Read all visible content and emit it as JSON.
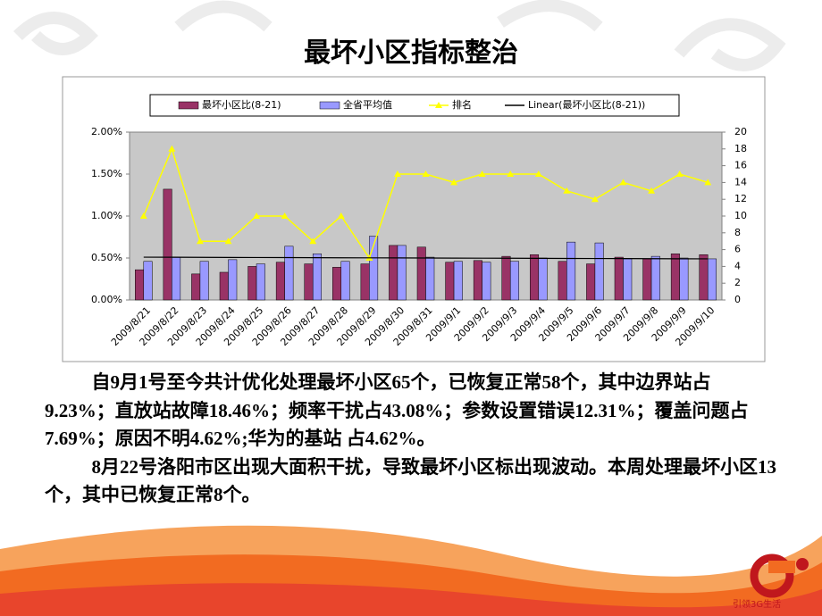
{
  "slide": {
    "title": "最坏小区指标整治",
    "paragraphs": [
      "自9月1号至今共计优化处理最坏小区65个，已恢复正常58个，其中边界站占9.23%；直放站故障18.46%；频率干扰占43.08%；参数设置错误12.31%；覆盖问题占7.69%；原因不明4.62%;华为的基站 占4.62%。",
      "8月22号洛阳市区出现大面积干扰，导致最坏小区标出现波动。本周处理最坏小区13个，其中已恢复正常8个。"
    ],
    "brand": "引领3G生活"
  },
  "chart_data": {
    "type": "bar",
    "categories": [
      "2009/8/21",
      "2009/8/22",
      "2009/8/23",
      "2009/8/24",
      "2009/8/25",
      "2009/8/26",
      "2009/8/27",
      "2009/8/28",
      "2009/8/29",
      "2009/8/30",
      "2009/8/31",
      "2009/9/1",
      "2009/9/2",
      "2009/9/3",
      "2009/9/4",
      "2009/9/5",
      "2009/9/6",
      "2009/9/7",
      "2009/9/8",
      "2009/9/9",
      "2009/9/10"
    ],
    "series": [
      {
        "name": "最坏小区比(8-21)",
        "type": "bar",
        "color": "#993366",
        "values": [
          0.36,
          1.32,
          0.31,
          0.33,
          0.4,
          0.45,
          0.43,
          0.39,
          0.43,
          0.65,
          0.63,
          0.45,
          0.47,
          0.52,
          0.54,
          0.46,
          0.43,
          0.51,
          0.49,
          0.55,
          0.54
        ]
      },
      {
        "name": "全省平均值",
        "type": "bar",
        "color": "#9999ff",
        "values": [
          0.46,
          0.51,
          0.46,
          0.48,
          0.43,
          0.64,
          0.55,
          0.46,
          0.76,
          0.65,
          0.51,
          0.46,
          0.45,
          0.46,
          0.5,
          0.69,
          0.68,
          0.49,
          0.52,
          0.5,
          0.49
        ]
      },
      {
        "name": "排名",
        "type": "line",
        "axis": "y2",
        "color": "#ffff00",
        "values": [
          10,
          18,
          7,
          7,
          10,
          10,
          7,
          10,
          5,
          15,
          15,
          14,
          15,
          15,
          15,
          13,
          12,
          14,
          13,
          15,
          14
        ]
      },
      {
        "name": "Linear(最坏小区比(8-21))",
        "type": "trend",
        "color": "#000000",
        "values": [
          0.51,
          0.509,
          0.508,
          0.507,
          0.506,
          0.505,
          0.504,
          0.503,
          0.502,
          0.501,
          0.5,
          0.499,
          0.498,
          0.497,
          0.496,
          0.495,
          0.494,
          0.493,
          0.492,
          0.491,
          0.49
        ]
      }
    ],
    "ylim": [
      0,
      2
    ],
    "yticks": [
      {
        "value": 0,
        "label": "0.00%"
      },
      {
        "value": 0.5,
        "label": "0.50%"
      },
      {
        "value": 1,
        "label": "1.00%"
      },
      {
        "value": 1.5,
        "label": "1.50%"
      },
      {
        "value": 2,
        "label": "2.00%"
      }
    ],
    "y2lim": [
      0,
      20
    ],
    "y2ticks": [
      0,
      2,
      4,
      6,
      8,
      10,
      12,
      14,
      16,
      18,
      20
    ],
    "legend": "top"
  }
}
